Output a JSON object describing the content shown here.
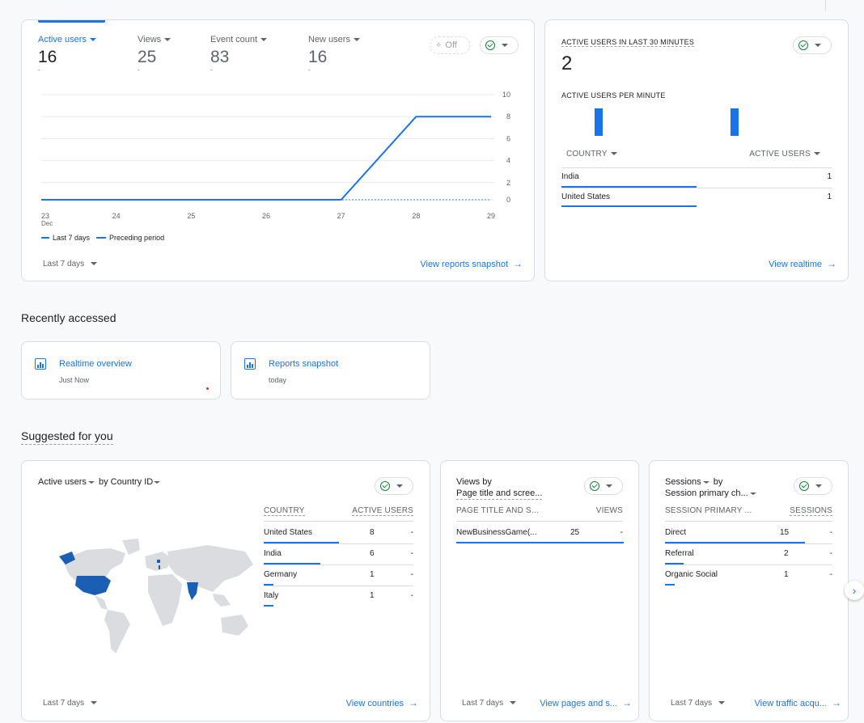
{
  "main_card": {
    "metrics": [
      {
        "label": "Active users",
        "value": "16",
        "sub": "-"
      },
      {
        "label": "Views",
        "value": "25",
        "sub": "-"
      },
      {
        "label": "Event count",
        "value": "83",
        "sub": "-"
      },
      {
        "label": "New users",
        "value": "16",
        "sub": "-"
      }
    ],
    "off_label": "Off",
    "legend": {
      "current": "Last 7 days",
      "previous": "Preceding period"
    },
    "date_range": "Last 7 days",
    "view_link": "View reports snapshot"
  },
  "chart_data": {
    "type": "line",
    "x": [
      "23\nDec",
      "24",
      "25",
      "26",
      "27",
      "28",
      "29"
    ],
    "x_labels": [
      "23",
      "24",
      "25",
      "26",
      "27",
      "28",
      "29"
    ],
    "x_sub": "Dec",
    "series": [
      {
        "name": "Last 7 days",
        "values": [
          0,
          0,
          0,
          0,
          0,
          8,
          8
        ]
      },
      {
        "name": "Preceding period",
        "values": [
          0,
          0,
          0,
          0,
          0,
          0,
          0
        ]
      }
    ],
    "y_ticks": [
      "10",
      "8",
      "6",
      "4",
      "2",
      "0"
    ],
    "ylim": [
      0,
      10
    ]
  },
  "realtime_card": {
    "title": "ACTIVE USERS IN LAST 30 MINUTES",
    "value": "2",
    "per_minute_label": "ACTIVE USERS PER MINUTE",
    "col_country": "COUNTRY",
    "col_users": "ACTIVE USERS",
    "rows": [
      {
        "country": "India",
        "users": "1"
      },
      {
        "country": "United States",
        "users": "1"
      }
    ],
    "view_link": "View realtime"
  },
  "recent": {
    "heading": "Recently accessed",
    "items": [
      {
        "title": "Realtime overview",
        "sub": "Just Now"
      },
      {
        "title": "Reports snapshot",
        "sub": "today"
      }
    ]
  },
  "suggested": {
    "heading": "Suggested for you",
    "country_card": {
      "title_metric": "Active users",
      "title_by": "by",
      "title_dim": "Country ID",
      "col_country": "COUNTRY",
      "col_users": "ACTIVE USERS",
      "rows": [
        {
          "name": "United States",
          "value": "8",
          "dash": "-"
        },
        {
          "name": "India",
          "value": "6",
          "dash": "-"
        },
        {
          "name": "Germany",
          "value": "1",
          "dash": "-"
        },
        {
          "name": "Italy",
          "value": "1",
          "dash": "-"
        }
      ],
      "date_range": "Last 7 days",
      "view_link": "View countries"
    },
    "pages_card": {
      "title_line1": "Views by",
      "title_line2": "Page title and scree...",
      "col_page": "PAGE TITLE AND S...",
      "col_views": "VIEWS",
      "rows": [
        {
          "name": "NewBusinessGame(...",
          "value": "25",
          "dash": "-"
        }
      ],
      "date_range": "Last 7 days",
      "view_link": "View pages and s..."
    },
    "sessions_card": {
      "title_metric": "Sessions",
      "title_by": "by",
      "title_dim": "Session primary ch...",
      "col_channel": "SESSION PRIMARY ...",
      "col_sessions": "SESSIONS",
      "rows": [
        {
          "name": "Direct",
          "value": "15",
          "dash": "-"
        },
        {
          "name": "Referral",
          "value": "2",
          "dash": "-"
        },
        {
          "name": "Organic Social",
          "value": "1",
          "dash": "-"
        }
      ],
      "date_range": "Last 7 days",
      "view_link": "View traffic acqu..."
    }
  },
  "colors": {
    "accent": "#1a73e8",
    "map_land": "#dadce0",
    "map_highlight": "#1a5fb4"
  }
}
